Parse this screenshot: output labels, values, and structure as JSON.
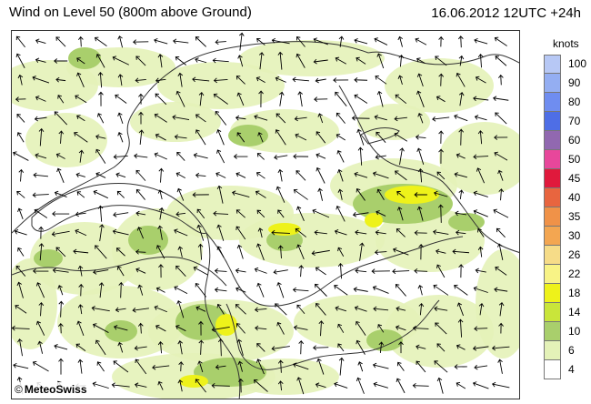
{
  "header": {
    "title": "Wind on Level 50 (800m above Ground)",
    "timestamp": "16.06.2012 12UTC +24h"
  },
  "credit": {
    "symbol": "©",
    "text": "MeteoSwiss"
  },
  "legend": {
    "unit": "knots",
    "levels": [
      {
        "label": "100",
        "color": "#b7c8f5"
      },
      {
        "label": "90",
        "color": "#94aef2"
      },
      {
        "label": "80",
        "color": "#6f8df0"
      },
      {
        "label": "70",
        "color": "#4e6ee6"
      },
      {
        "label": "60",
        "color": "#9168b0"
      },
      {
        "label": "50",
        "color": "#e8479b"
      },
      {
        "label": "45",
        "color": "#e0193c"
      },
      {
        "label": "40",
        "color": "#e8653f"
      },
      {
        "label": "35",
        "color": "#f09248"
      },
      {
        "label": "30",
        "color": "#f3a651"
      },
      {
        "label": "26",
        "color": "#f6dc88"
      },
      {
        "label": "22",
        "color": "#f8f386"
      },
      {
        "label": "18",
        "color": "#eef21a"
      },
      {
        "label": "14",
        "color": "#c9e53a"
      },
      {
        "label": "10",
        "color": "#a9cf6c"
      },
      {
        "label": "6",
        "color": "#e4f2b8"
      },
      {
        "label": "4",
        "color": "#ffffff"
      }
    ]
  },
  "map": {
    "wind_fill_colors": {
      "light": "#e4f2b8",
      "mid": "#a9cf6c",
      "yellow": "#eef21a"
    },
    "line_color": "#333333",
    "arrow_color": "#000000"
  }
}
